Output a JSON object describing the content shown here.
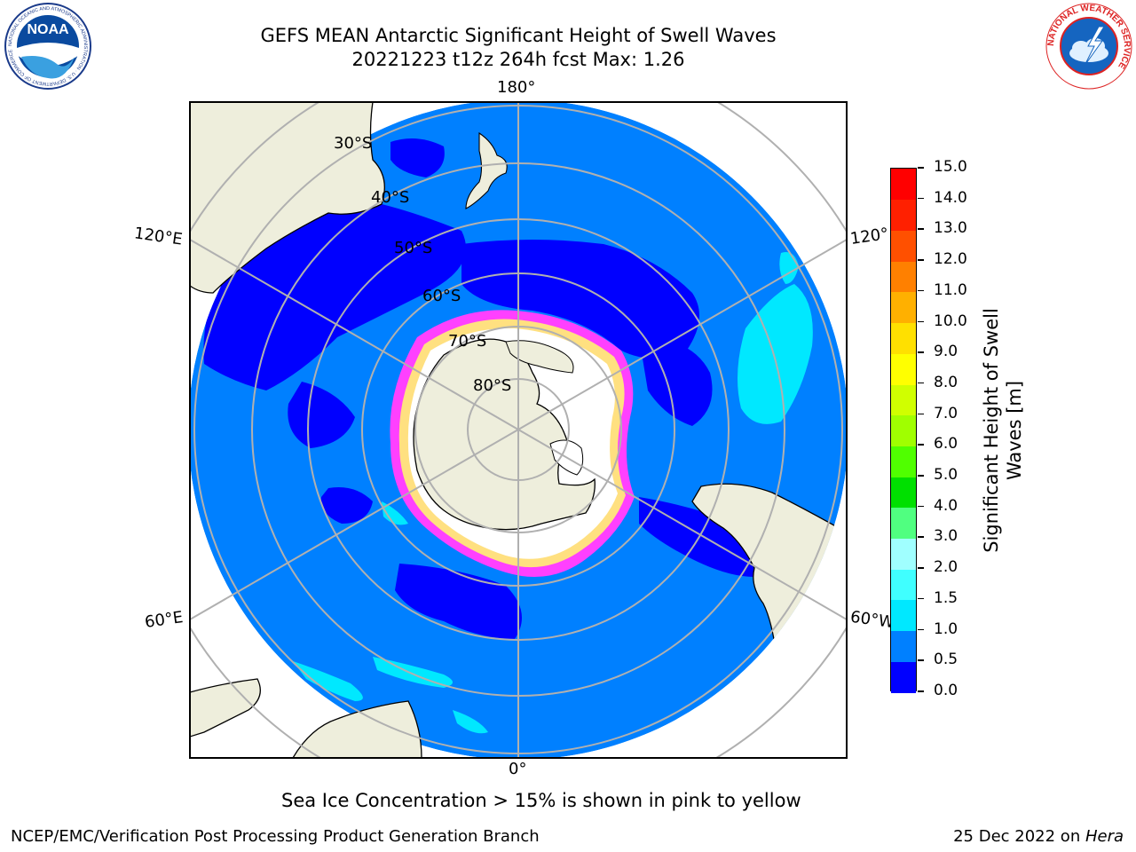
{
  "header": {
    "title_line1": "GEFS MEAN Antarctic Significant Height of Swell Waves",
    "title_line2": "20221223 t12z 264h fcst   Max: 1.26"
  },
  "logos": {
    "noaa_text": "NOAA",
    "noaa_ring_text": "NATIONAL OCEANIC AND ATMOSPHERIC ADMINISTRATION · U.S. DEPARTMENT OF COMMERCE",
    "nws_ring_text": "NATIONAL WEATHER SERVICE"
  },
  "map": {
    "longitude_labels": {
      "top": "180°",
      "bottom": "0°",
      "upper_left": "120°E",
      "lower_left": "60°E",
      "upper_right": "120°",
      "lower_right": "60°W"
    },
    "latitude_labels": [
      "30°S",
      "40°S",
      "50°S",
      "60°S",
      "70°S",
      "80°S"
    ],
    "colors": {
      "ocean_dark": "#0000ff",
      "ocean_main": "#0080ff",
      "ocean_light": "#00ffff",
      "land": "#eeeedc",
      "ice_core": "#ffffff",
      "ice_edge_pink": "#ff40ff",
      "ice_edge_yellow": "#ffe080",
      "grid": "#b0b0b0"
    }
  },
  "colorbar": {
    "title_line1": "Significant Height of Swell",
    "title_line2": "Waves [m]",
    "tick_labels": [
      "0.0",
      "0.5",
      "1.0",
      "1.5",
      "2.0",
      "3.0",
      "4.0",
      "5.0",
      "6.0",
      "7.0",
      "8.0",
      "9.0",
      "10.0",
      "11.0",
      "12.0",
      "13.0",
      "14.0",
      "15.0"
    ],
    "bin_colors": [
      "#0000ff",
      "#0080ff",
      "#00e8ff",
      "#40ffff",
      "#a0ffff",
      "#50ff80",
      "#00e000",
      "#50ff00",
      "#a0ff00",
      "#d0ff00",
      "#ffff00",
      "#ffe000",
      "#ffb000",
      "#ff8000",
      "#ff5000",
      "#ff2000",
      "#ff0000"
    ]
  },
  "footer": {
    "subtitle": "Sea Ice Concentration > 15% is shown in pink to yellow",
    "left": "NCEP/EMC/Verification Post Processing Product Generation Branch",
    "right_date": "25 Dec 2022 on ",
    "right_host": "Hera"
  }
}
